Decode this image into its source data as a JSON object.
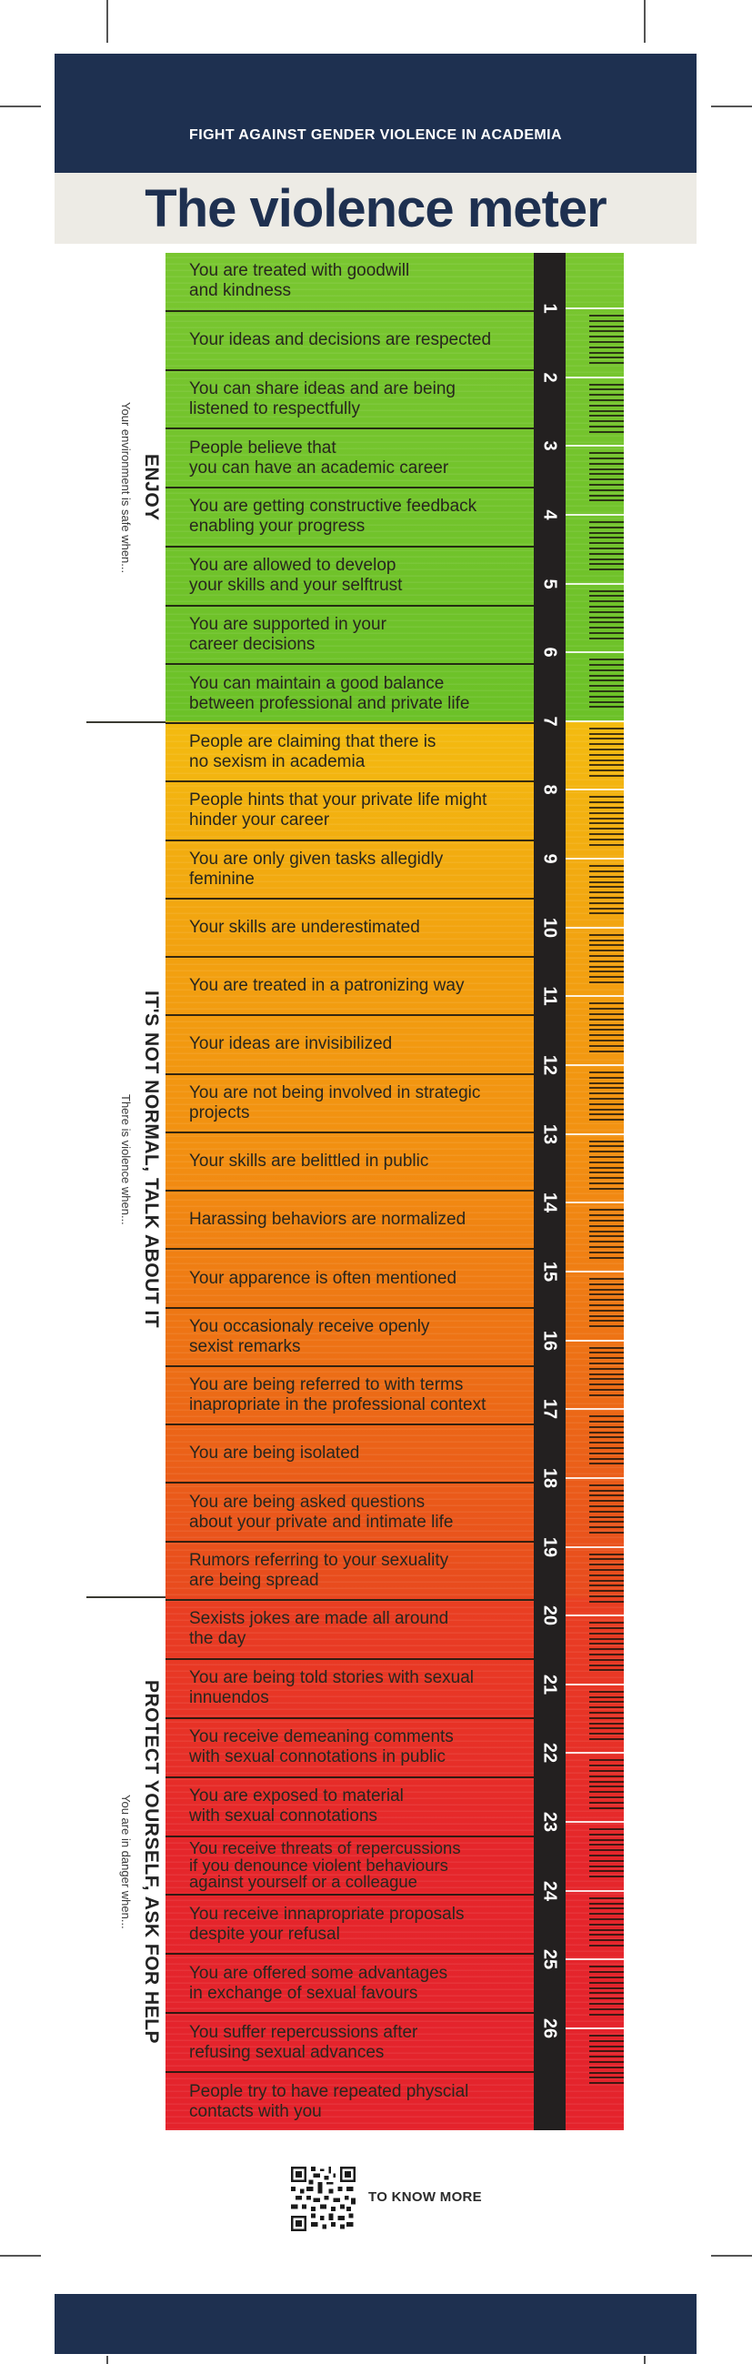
{
  "header": {
    "banner": "FIGHT AGAINST GENDER VIOLENCE IN ACADEMIA",
    "title": "The violence meter"
  },
  "meter": {
    "scale_numbers": [
      1,
      2,
      3,
      4,
      5,
      6,
      7,
      8,
      9,
      10,
      11,
      12,
      13,
      14,
      15,
      16,
      17,
      18,
      19,
      20,
      21,
      22,
      23,
      24,
      25,
      26
    ],
    "sections": [
      {
        "id": "green",
        "label": "ENJOY",
        "sublabel": "Your environment is safe when...",
        "color": "#72c42c",
        "items": [
          "You are treated with goodwill\nand kindness",
          "Your ideas and decisions are respected",
          "You can share ideas and are being\nlistened to respectfully",
          "People believe that\nyou can have an academic career",
          "You are getting constructive feedback\nenabling your progress",
          "You are allowed to develop\nyour skills and your selftrust",
          "You are supported in your\ncareer decisions",
          "You can maintain a good balance\nbetween professional and private life"
        ]
      },
      {
        "id": "orange",
        "label": "IT'S NOT NORMAL, TALK ABOUT IT",
        "sublabel": "There is violence when...",
        "color": "#f29211",
        "items": [
          "People are claiming that there is\nno sexism in academia",
          "People hints that your private life might\nhinder your career",
          "You are only given tasks allegidly\nfeminine",
          "Your skills are underestimated",
          "You are treated in a patronizing way",
          "Your ideas are invisibilized",
          "You are not being involved in strategic\nprojects",
          "Your skills are belittled in public",
          "Harassing behaviors are normalized",
          "Your apparence is often mentioned",
          "You occasionaly receive openly\nsexist remarks",
          "You are being referred to with terms\ninapropriate in the professional context",
          "You are being isolated",
          "You are being asked questions\nabout your private and intimate life",
          "Rumors referring to your sexuality\nare being spread"
        ]
      },
      {
        "id": "red",
        "label": "PROTECT YOURSELF, ASK FOR HELP",
        "sublabel": "You are in danger when...",
        "color": "#e4232c",
        "items": [
          "Sexists jokes are made all around\nthe day",
          "You are being told stories with sexual\ninnuendos",
          "You receive demeaning comments\nwith sexual connotations in public",
          "You are exposed to material\nwith sexual connotations",
          "You receive threats of repercussions\nif you denounce violent behaviours\nagainst yourself or a colleague",
          "You receive innapropriate proposals\ndespite your refusal",
          "You are offered some advantages\nin exchange of sexual favours",
          "You suffer repercussions after\nrefusing sexual advances",
          "People try to have repeated physcial\ncontacts with you"
        ]
      }
    ]
  },
  "footer": {
    "qr_label": "TO KNOW MORE"
  },
  "colors": {
    "navy": "#1e3050",
    "title_bg": "#edebe5",
    "green": "#72c42c",
    "orange_top": "#f3bb10",
    "orange_bottom": "#e84a1e",
    "red": "#e4232c",
    "number_strip": "#232020"
  }
}
